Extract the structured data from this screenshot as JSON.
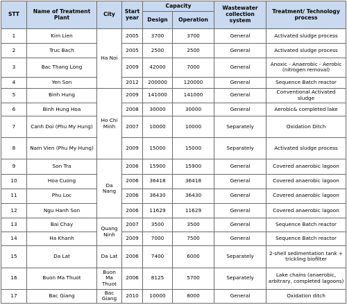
{
  "headers": {
    "stt": "STT",
    "name": "Name of Treatment Plant",
    "city": "City",
    "start_year": "Start year",
    "capacity": "Capacity",
    "design": "Design",
    "operation": "Operation",
    "wastewater": "Wastewater collection system",
    "treatment": "Treatment/ Technology process"
  },
  "rows": [
    {
      "stt": "1",
      "name": "Kim Lien",
      "city": "Ha Noi",
      "year": "2005",
      "design": "3700",
      "operation": "3700",
      "system": "General",
      "process": "Activated sludge process"
    },
    {
      "stt": "2",
      "name": "Truc Bach",
      "year": "2005",
      "design": "2500",
      "operation": "2500",
      "system": "General",
      "process": "Activated sludge process"
    },
    {
      "stt": "3",
      "name": "Bac Thang Long",
      "year": "2009",
      "design": "42000",
      "operation": "7000",
      "system": "General",
      "process": "Anoxic - Anaerobic - Aerobic (nitrogen removal)"
    },
    {
      "stt": "4",
      "name": "Yen Son",
      "year": "2012",
      "design": "200000",
      "operation": "120000",
      "system": "General",
      "process": "Sequence Batch reactor"
    },
    {
      "stt": "5",
      "name": "Binh Hung",
      "city": "Ho Chi Minh",
      "year": "2009",
      "design": "141000",
      "operation": "141000",
      "system": "General",
      "process": "Conventional Activated sludge"
    },
    {
      "stt": "6",
      "name": "Binh Hung Hoa",
      "year": "2008",
      "design": "30000",
      "operation": "30000",
      "system": "General",
      "process": "Aerobic& completed lake"
    },
    {
      "stt": "7",
      "name": "Canh Doi (Phu My Hung)",
      "year": "2007",
      "design": "10000",
      "operation": "10000",
      "system": "Separately",
      "process": "Oxidation Ditch"
    },
    {
      "stt": "8",
      "name": "Nam Vien (Phu My Hung)",
      "year": "2009",
      "design": "15000",
      "operation": "15000",
      "system": "Separately",
      "process": "Activated sludge process"
    },
    {
      "stt": "9",
      "name": "Son Tra",
      "city": "Da Nang",
      "year": "2006",
      "design": "15900",
      "operation": "15900",
      "system": "General",
      "process": "Covered anaerobic lagoon"
    },
    {
      "stt": "10",
      "name": "Hoa Cuong",
      "year": "2006",
      "design": "36418",
      "operation": "36418",
      "system": "General",
      "process": "Covered anaerobic lagoon"
    },
    {
      "stt": "11",
      "name": "Phu Loc",
      "year": "2006",
      "design": "36430",
      "operation": "36430",
      "system": "General",
      "process": "Covered anaerobic lagoon"
    },
    {
      "stt": "12",
      "name": "Ngu Hanh Son",
      "year": "2006",
      "design": "11629",
      "operation": "11629",
      "system": "General",
      "process": "Covered anaerobic lagoon"
    },
    {
      "stt": "13",
      "name": "Bai Chay",
      "city": "Quang Ninh",
      "year": "2007",
      "design": "3500",
      "operation": "3500",
      "system": "General",
      "process": "Sequence Batch reactor"
    },
    {
      "stt": "14",
      "name": "Ha Khanh",
      "year": "2009",
      "design": "7000",
      "operation": "7500",
      "system": "General",
      "process": "Sequence Batch reactor"
    },
    {
      "stt": "15",
      "name": "Da Lat",
      "city": "Da Lat",
      "year": "2006",
      "design": "7400",
      "operation": "6000",
      "system": "Separately",
      "process": "2-shell sedimentation tank + trickling biofilter"
    },
    {
      "stt": "16",
      "name": "Buon Ma Thuot",
      "city": "Buon Ma Thuot",
      "year": "2006",
      "design": "8125",
      "operation": "5700",
      "system": "Separately",
      "process": "Lake chains (anaerobic, arbitrary, completed lagoons)"
    },
    {
      "stt": "17",
      "name": "Bac Giang",
      "city": "Bac Giang",
      "year": "2010",
      "design": "10000",
      "operation": "8000",
      "system": "General",
      "process": "Oxidation ditch"
    }
  ]
}
